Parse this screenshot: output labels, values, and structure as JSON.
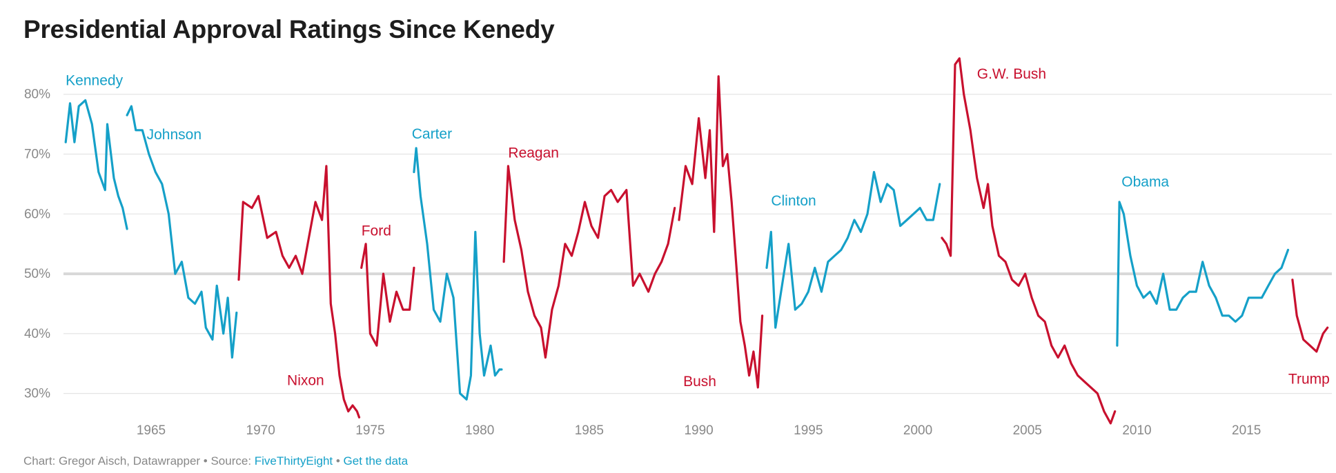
{
  "title": "Presidential Approval Ratings Since Kenedy",
  "footer": {
    "prefix": "Chart: Gregor Aisch, Datawrapper • Source: ",
    "source_link": "FiveThirtyEight",
    "separator": " • ",
    "data_link": "Get the data"
  },
  "colors": {
    "democrat": "#15a0c8",
    "republican": "#c8102e",
    "grid": "#e4e4e4",
    "baseline50": "#d8d8d8"
  },
  "chart_data": {
    "type": "line",
    "title": "Presidential Approval Ratings Since Kenedy",
    "xlabel": "",
    "ylabel": "",
    "xlim": [
      1961,
      2018.9
    ],
    "ylim": [
      25,
      87
    ],
    "y_ticks": [
      30,
      40,
      50,
      60,
      70,
      80
    ],
    "y_tick_labels": [
      "30%",
      "40%",
      "50%",
      "60%",
      "70%",
      "80%"
    ],
    "x_ticks": [
      1965,
      1970,
      1975,
      1980,
      1985,
      1990,
      1995,
      2000,
      2005,
      2010,
      2015
    ],
    "x_tick_labels": [
      "1965",
      "1970",
      "1975",
      "1980",
      "1985",
      "1990",
      "1995",
      "2000",
      "2005",
      "2010",
      "2015"
    ],
    "grid": true,
    "series": [
      {
        "name": "Kennedy",
        "party": "democrat",
        "label_x": 1961.1,
        "label_y": 81.5,
        "x": [
          1961.1,
          1961.3,
          1961.5,
          1961.7,
          1962.0,
          1962.3,
          1962.6,
          1962.9,
          1963.0,
          1963.3,
          1963.5,
          1963.7,
          1963.9
        ],
        "y": [
          72,
          78.5,
          72,
          78,
          79,
          75,
          67,
          64,
          75,
          66,
          63,
          61,
          57.5
        ]
      },
      {
        "name": "Johnson",
        "party": "democrat",
        "label_x": 1964.8,
        "label_y": 72.5,
        "x": [
          1963.9,
          1964.1,
          1964.3,
          1964.6,
          1964.9,
          1965.2,
          1965.5,
          1965.8,
          1966.1,
          1966.4,
          1966.7,
          1967.0,
          1967.3,
          1967.5,
          1967.8,
          1968.0,
          1968.3,
          1968.5,
          1968.7,
          1968.9
        ],
        "y": [
          76.5,
          78,
          74,
          74,
          70,
          67,
          65,
          60,
          50,
          52,
          46,
          45,
          47,
          41,
          39,
          48,
          40,
          46,
          36,
          43.5
        ]
      },
      {
        "name": "Nixon",
        "party": "republican",
        "label_x": 1972.9,
        "label_y": 31.4,
        "label_anchor": "end",
        "x": [
          1969.0,
          1969.2,
          1969.6,
          1969.9,
          1970.3,
          1970.7,
          1971.0,
          1971.3,
          1971.6,
          1971.9,
          1972.2,
          1972.5,
          1972.8,
          1973.0,
          1973.2,
          1973.4,
          1973.6,
          1973.8,
          1974.0,
          1974.2,
          1974.4,
          1974.5
        ],
        "y": [
          49,
          62,
          61,
          63,
          56,
          57,
          53,
          51,
          53,
          50,
          56,
          62,
          59,
          68,
          45,
          40,
          33,
          29,
          27,
          28,
          27,
          26
        ]
      },
      {
        "name": "Ford",
        "party": "republican",
        "label_x": 1974.6,
        "label_y": 56.4,
        "x": [
          1974.6,
          1974.8,
          1975.0,
          1975.3,
          1975.6,
          1975.9,
          1976.2,
          1976.5,
          1976.8,
          1977.0
        ],
        "y": [
          51,
          55,
          40,
          38,
          50,
          42,
          47,
          44,
          44,
          51
        ]
      },
      {
        "name": "Carter",
        "party": "democrat",
        "label_x": 1976.9,
        "label_y": 72.6,
        "x": [
          1977.0,
          1977.1,
          1977.3,
          1977.6,
          1977.9,
          1978.2,
          1978.5,
          1978.8,
          1979.1,
          1979.4,
          1979.6,
          1979.8,
          1980.0,
          1980.2,
          1980.5,
          1980.7,
          1980.9,
          1981.0
        ],
        "y": [
          67,
          71,
          63,
          55,
          44,
          42,
          50,
          46,
          30,
          29,
          33,
          57,
          40,
          33,
          38,
          33,
          34,
          34
        ]
      },
      {
        "name": "Reagan",
        "party": "republican",
        "label_x": 1981.3,
        "label_y": 69.4,
        "x": [
          1981.1,
          1981.3,
          1981.6,
          1981.9,
          1982.2,
          1982.5,
          1982.8,
          1983.0,
          1983.3,
          1983.6,
          1983.9,
          1984.2,
          1984.5,
          1984.8,
          1985.1,
          1985.4,
          1985.7,
          1986.0,
          1986.3,
          1986.7,
          1987.0,
          1987.3,
          1987.7,
          1988.0,
          1988.3,
          1988.6,
          1988.9
        ],
        "y": [
          52,
          68,
          59,
          54,
          47,
          43,
          41,
          36,
          44,
          48,
          55,
          53,
          57,
          62,
          58,
          56,
          63,
          64,
          62,
          64,
          48,
          50,
          47,
          50,
          52,
          55,
          61
        ]
      },
      {
        "name": "Bush",
        "party": "republican",
        "label_x": 1990.8,
        "label_y": 31.2,
        "label_anchor": "end",
        "x": [
          1989.1,
          1989.4,
          1989.7,
          1990.0,
          1990.3,
          1990.5,
          1990.7,
          1990.9,
          1991.1,
          1991.3,
          1991.5,
          1991.7,
          1991.9,
          1992.1,
          1992.3,
          1992.5,
          1992.7,
          1992.9
        ],
        "y": [
          59,
          68,
          65,
          76,
          66,
          74,
          57,
          83,
          68,
          70,
          62,
          52,
          42,
          38,
          33,
          37,
          31,
          43
        ]
      },
      {
        "name": "Clinton",
        "party": "democrat",
        "label_x": 1993.3,
        "label_y": 61.4,
        "x": [
          1993.1,
          1993.3,
          1993.5,
          1993.8,
          1994.1,
          1994.4,
          1994.7,
          1995.0,
          1995.3,
          1995.6,
          1995.9,
          1996.2,
          1996.5,
          1996.8,
          1997.1,
          1997.4,
          1997.7,
          1998.0,
          1998.3,
          1998.6,
          1998.9,
          1999.2,
          1999.5,
          1999.8,
          2000.1,
          2000.4,
          2000.7,
          2001.0
        ],
        "y": [
          51,
          57,
          41,
          48,
          55,
          44,
          45,
          47,
          51,
          47,
          52,
          53,
          54,
          56,
          59,
          57,
          60,
          67,
          62,
          65,
          64,
          58,
          59,
          60,
          61,
          59,
          59,
          65
        ]
      },
      {
        "name": "G.W. Bush",
        "party": "republican",
        "label_x": 2002.7,
        "label_y": 82.6,
        "x": [
          2001.1,
          2001.3,
          2001.5,
          2001.7,
          2001.9,
          2002.1,
          2002.4,
          2002.7,
          2003.0,
          2003.2,
          2003.4,
          2003.7,
          2004.0,
          2004.3,
          2004.6,
          2004.9,
          2005.2,
          2005.5,
          2005.8,
          2006.1,
          2006.4,
          2006.7,
          2007.0,
          2007.3,
          2007.6,
          2007.9,
          2008.2,
          2008.5,
          2008.8,
          2009.0
        ],
        "y": [
          56,
          55,
          53,
          85,
          86,
          80,
          74,
          66,
          61,
          65,
          58,
          53,
          52,
          49,
          48,
          50,
          46,
          43,
          42,
          38,
          36,
          38,
          35,
          33,
          32,
          31,
          30,
          27,
          25,
          27
        ]
      },
      {
        "name": "Obama",
        "party": "democrat",
        "label_x": 2009.3,
        "label_y": 64.6,
        "x": [
          2009.1,
          2009.2,
          2009.4,
          2009.7,
          2010.0,
          2010.3,
          2010.6,
          2010.9,
          2011.2,
          2011.5,
          2011.8,
          2012.1,
          2012.4,
          2012.7,
          2013.0,
          2013.3,
          2013.6,
          2013.9,
          2014.2,
          2014.5,
          2014.8,
          2015.1,
          2015.4,
          2015.7,
          2016.0,
          2016.3,
          2016.6,
          2016.9
        ],
        "y": [
          38,
          62,
          60,
          53,
          48,
          46,
          47,
          45,
          50,
          44,
          44,
          46,
          47,
          47,
          52,
          48,
          46,
          43,
          43,
          42,
          43,
          46,
          46,
          46,
          48,
          50,
          51,
          54
        ]
      },
      {
        "name": "Trump",
        "party": "republican",
        "label_x": 2018.8,
        "label_y": 31.6,
        "label_anchor": "end",
        "x": [
          2017.1,
          2017.3,
          2017.6,
          2017.9,
          2018.2,
          2018.5,
          2018.7
        ],
        "y": [
          49,
          43,
          39,
          38,
          37,
          40,
          41
        ]
      }
    ]
  }
}
